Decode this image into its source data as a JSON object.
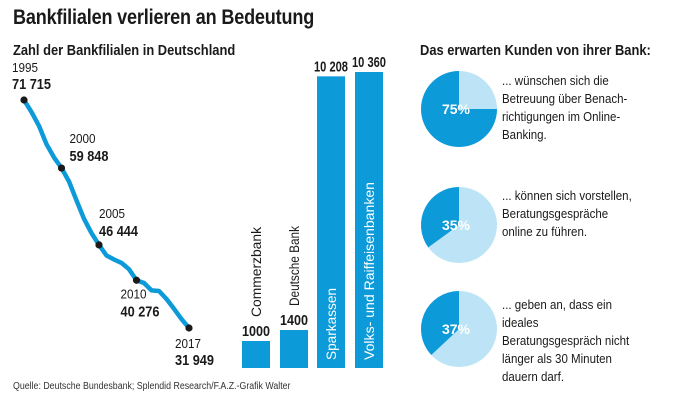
{
  "title": "Bankfilialen verlieren an Bedeutung",
  "source": "Quelle: Deutsche Bundesbank; Splendid Research/F.A.Z.-Grafik Walter",
  "colors": {
    "accent": "#0d9ad8",
    "light": "#bde4f6",
    "text": "#1a1a1a"
  },
  "chart_data": [
    {
      "type": "line",
      "title": "Zahl der Bankfilialen in Deutschland",
      "x": [
        1995,
        1996,
        1997,
        1998,
        1999,
        2000,
        2001,
        2002,
        2003,
        2004,
        2005,
        2006,
        2007,
        2008,
        2009,
        2010,
        2011,
        2012,
        2013,
        2014,
        2015,
        2016,
        2017
      ],
      "values": [
        71715,
        69600,
        67200,
        64000,
        61700,
        59848,
        57500,
        54200,
        51000,
        48500,
        46444,
        44600,
        43900,
        43300,
        42200,
        40276,
        39800,
        38500,
        38400,
        37000,
        35300,
        33500,
        31949
      ],
      "labeled_points": [
        {
          "year": "1995",
          "value": "71 715",
          "index": 0
        },
        {
          "year": "2000",
          "value": "59 848",
          "index": 5
        },
        {
          "year": "2005",
          "value": "46 444",
          "index": 10
        },
        {
          "year": "2010",
          "value": "40 276",
          "index": 15
        },
        {
          "year": "2017",
          "value": "31 949",
          "index": 22
        }
      ]
    },
    {
      "type": "bar",
      "categories": [
        "Commerzbank",
        "Deutsche Bank",
        "Sparkassen",
        "Volks- und Raiffeisenbanken"
      ],
      "values": [
        1000,
        1400,
        10208,
        10360
      ],
      "value_labels": [
        "1000",
        "1400",
        "10 208",
        "10 360"
      ]
    },
    {
      "type": "pie",
      "title": "Das erwarten Kunden von ihrer Bank:",
      "slices": [
        {
          "value": 75,
          "label": "75%",
          "text": "... wünschen sich die Betreuung über Benach-richtigungen im Online-Banking."
        },
        {
          "value": 35,
          "label": "35%",
          "text": "... können sich vorstellen, Beratungsgespräche online zu führen."
        },
        {
          "value": 37,
          "label": "37%",
          "text": "... geben an, dass ein ideales Beratungsgespräch nicht länger als 30 Minuten dauern darf."
        }
      ]
    }
  ]
}
